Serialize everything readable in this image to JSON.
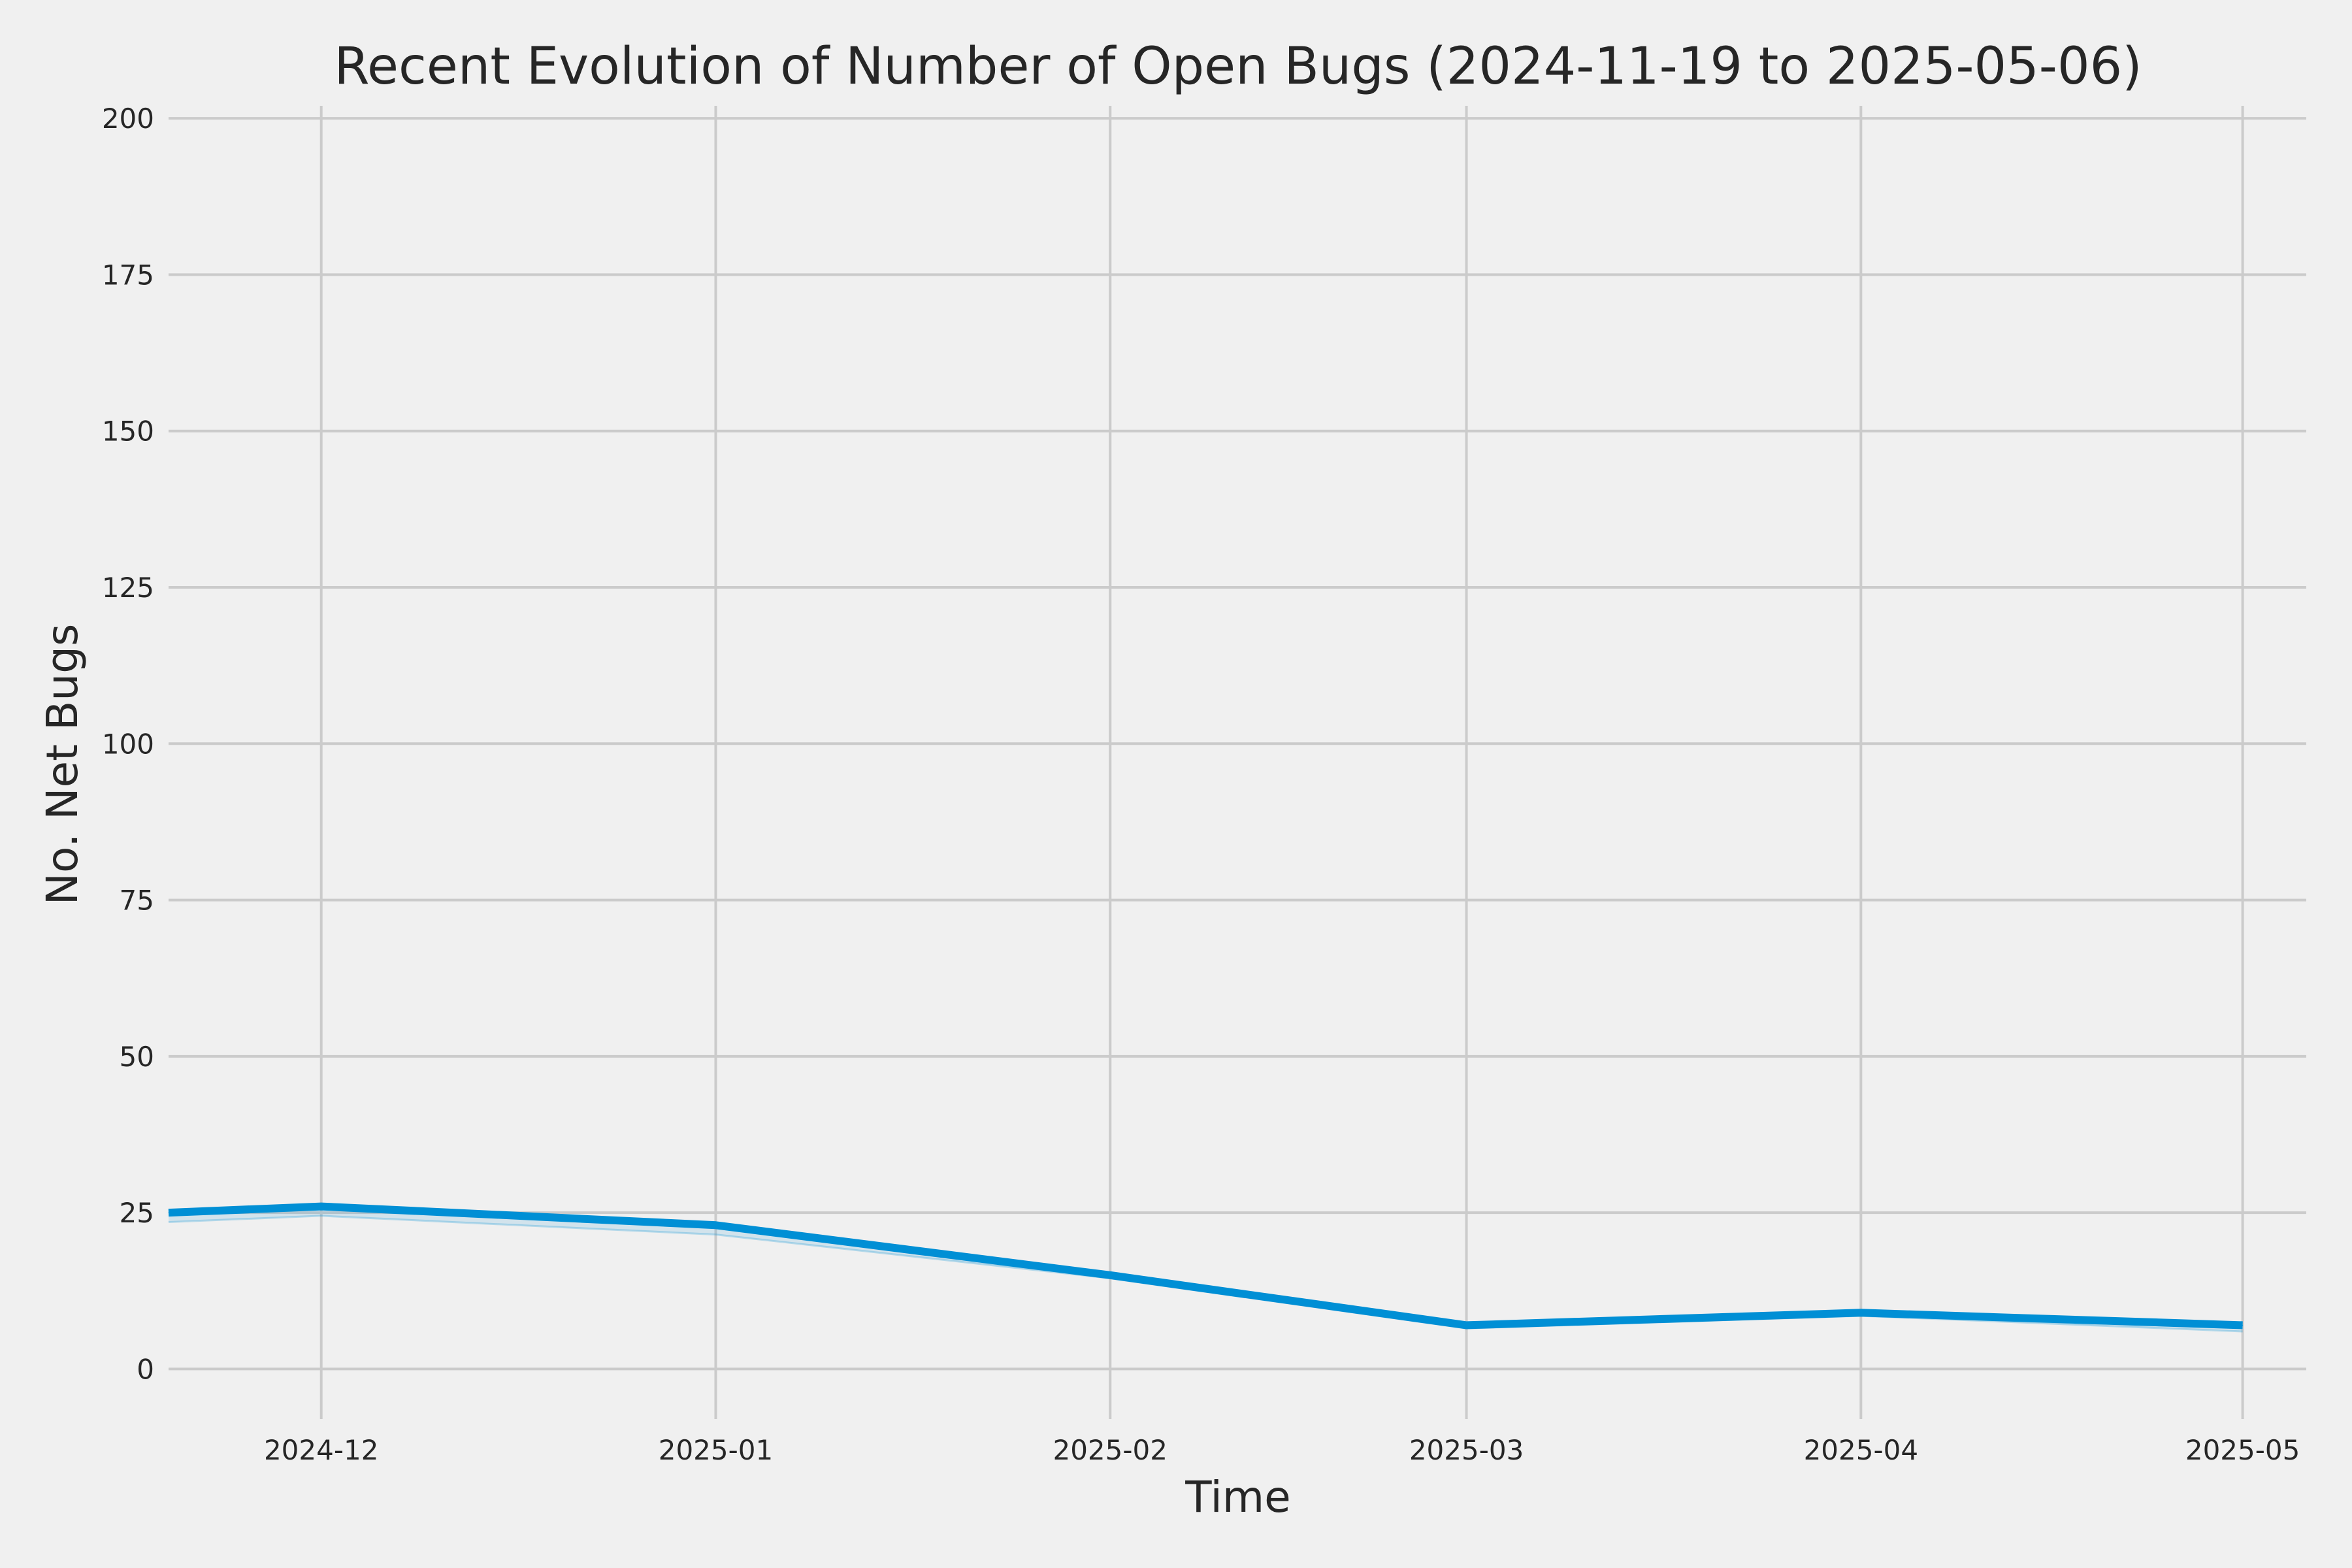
{
  "chart_data": {
    "type": "line",
    "title": "Recent Evolution of Number of Open Bugs (2024-11-19 to 2025-05-06)",
    "xlabel": "Time",
    "ylabel": "No. Net Bugs",
    "x_ticks": [
      "2024-12",
      "2025-01",
      "2025-02",
      "2025-03",
      "2025-04",
      "2025-05"
    ],
    "y_ticks": [
      0,
      25,
      50,
      75,
      100,
      125,
      150,
      175,
      200
    ],
    "ylim": [
      -8,
      202
    ],
    "xlim": [
      "2024-11-19",
      "2025-05-06"
    ],
    "grid": true,
    "series": [
      {
        "color": "#008fd5",
        "points": [
          {
            "x": "2024-11-19",
            "y": 25
          },
          {
            "x": "2024-12-01",
            "y": 26
          },
          {
            "x": "2025-01-01",
            "y": 23
          },
          {
            "x": "2025-02-01",
            "y": 15
          },
          {
            "x": "2025-03-01",
            "y": 7
          },
          {
            "x": "2025-04-01",
            "y": 9
          },
          {
            "x": "2025-05-01",
            "y": 7
          }
        ],
        "band_lower": [
          23.5,
          24.5,
          21.5,
          14.5,
          6.5,
          8.5,
          6
        ]
      }
    ]
  }
}
